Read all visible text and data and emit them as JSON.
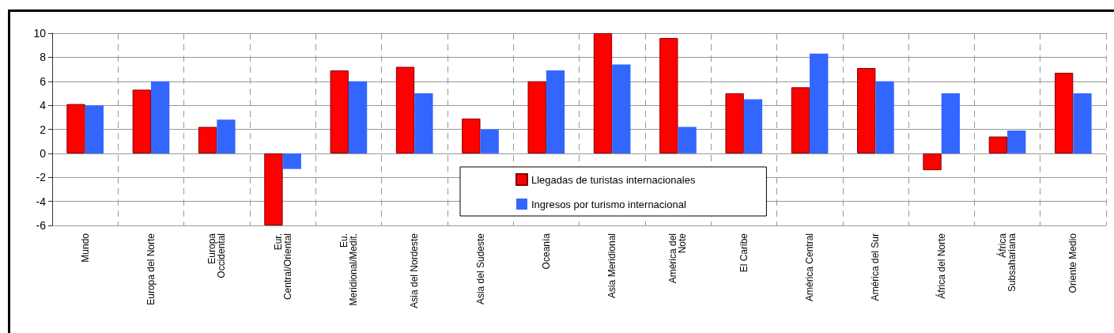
{
  "chart_data": {
    "type": "bar",
    "categories": [
      "Mundo",
      "Europa del Norte",
      "Europa\nOccidental",
      "Eur.\nCentral/Oriental",
      "Eu.\nMeridional/Medit.",
      "Asia del Nordeste",
      "Asia del Sudeste",
      "Oceanía",
      "Asia Meridional",
      "América del\nNote",
      "El Caribe",
      "América Central",
      "América del Sur",
      "África del Norte",
      "África\nSubsahariana",
      "Oriente Medio"
    ],
    "series": [
      {
        "name": "Llegadas de turistas internacionales",
        "color": "#ff0000",
        "values": [
          4.1,
          5.3,
          2.2,
          -6.0,
          6.9,
          7.2,
          2.9,
          6.0,
          10.0,
          9.6,
          5.0,
          5.5,
          7.1,
          -1.4,
          1.4,
          6.7
        ]
      },
      {
        "name": "Ingresos por turismo internacional",
        "color": "#3366ff",
        "values": [
          4.0,
          6.0,
          2.8,
          -1.3,
          6.0,
          5.0,
          2.0,
          6.9,
          7.4,
          2.2,
          4.5,
          8.3,
          6.0,
          5.0,
          1.9,
          5.0
        ]
      }
    ],
    "ylim": [
      -6,
      10
    ],
    "yticks": [
      -6,
      -4,
      -2,
      0,
      2,
      4,
      6,
      8,
      10
    ],
    "grid": true,
    "legend": "bottom"
  }
}
